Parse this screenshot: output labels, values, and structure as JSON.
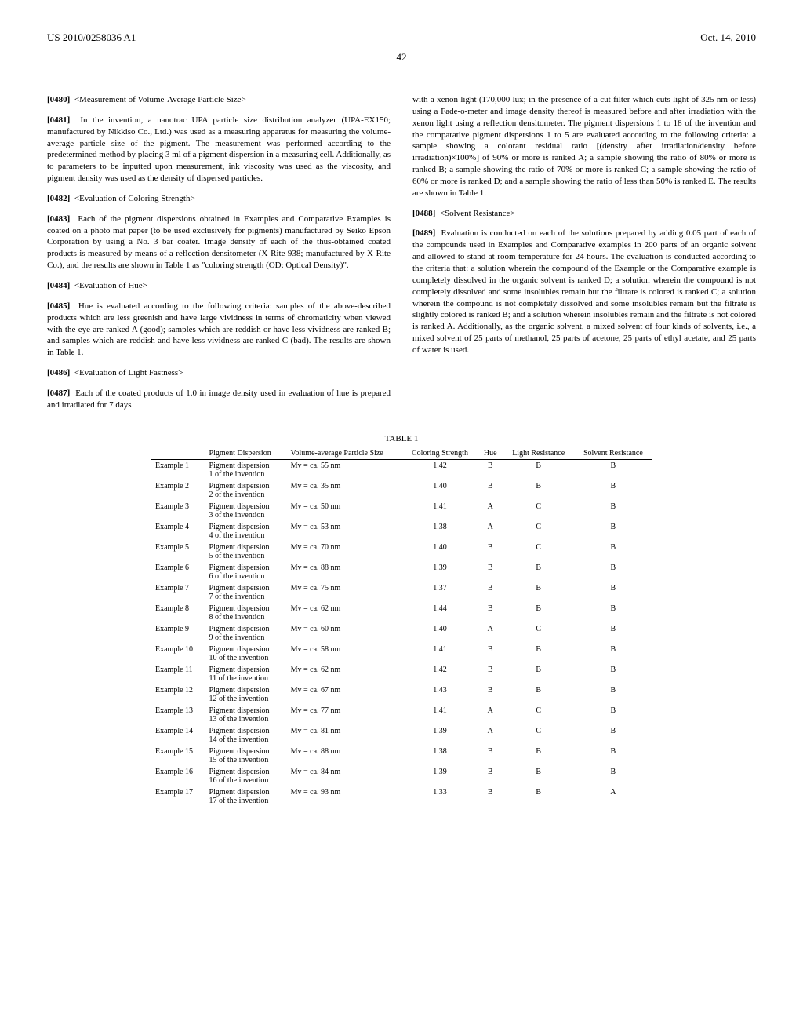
{
  "header": {
    "pubno": "US 2010/0258036 A1",
    "date": "Oct. 14, 2010",
    "pageno": "42"
  },
  "left": {
    "p0480": {
      "num": "[0480]",
      "text": "<Measurement of Volume-Average Particle Size>"
    },
    "p0481": {
      "num": "[0481]",
      "text": "In the invention, a nanotrac UPA particle size distribution analyzer (UPA-EX150; manufactured by Nikkiso Co., Ltd.) was used as a measuring apparatus for measuring the volume-average particle size of the pigment. The measurement was performed according to the predetermined method by placing 3 ml of a pigment dispersion in a measuring cell. Additionally, as to parameters to be inputted upon measurement, ink viscosity was used as the viscosity, and pigment density was used as the density of dispersed particles."
    },
    "p0482": {
      "num": "[0482]",
      "text": "<Evaluation of Coloring Strength>"
    },
    "p0483": {
      "num": "[0483]",
      "text": "Each of the pigment dispersions obtained in Examples and Comparative Examples is coated on a photo mat paper (to be used exclusively for pigments) manufactured by Seiko Epson Corporation by using a No. 3 bar coater. Image density of each of the thus-obtained coated products is measured by means of a reflection densitometer (X-Rite 938; manufactured by X-Rite Co.), and the results are shown in Table 1 as \"coloring strength (OD: Optical Density)\"."
    },
    "p0484": {
      "num": "[0484]",
      "text": "<Evaluation of Hue>"
    },
    "p0485": {
      "num": "[0485]",
      "text": "Hue is evaluated according to the following criteria: samples of the above-described products which are less greenish and have large vividness in terms of chromaticity when viewed with the eye are ranked A (good); samples which are reddish or have less vividness are ranked B; and samples which are reddish and have less vividness are ranked C (bad). The results are shown in Table 1."
    },
    "p0486": {
      "num": "[0486]",
      "text": "<Evaluation of Light Fastness>"
    },
    "p0487": {
      "num": "[0487]",
      "text": "Each of the coated products of 1.0 in image density used in evaluation of hue is prepared and irradiated for 7 days"
    }
  },
  "right": {
    "cont": "with a xenon light (170,000 lux; in the presence of a cut filter which cuts light of 325 nm or less) using a Fade-o-meter and image density thereof is measured before and after irradiation with the xenon light using a reflection densitometer. The pigment dispersions 1 to 18 of the invention and the comparative pigment dispersions 1 to 5 are evaluated according to the following criteria: a sample showing a colorant residual ratio [(density after irradiation/density before irradiation)×100%] of 90% or more is ranked A; a sample showing the ratio of 80% or more is ranked B; a sample showing the ratio of 70% or more is ranked C; a sample showing the ratio of 60% or more is ranked D; and a sample showing the ratio of less than 50% is ranked E. The results are shown in Table 1.",
    "p0488": {
      "num": "[0488]",
      "text": "<Solvent Resistance>"
    },
    "p0489": {
      "num": "[0489]",
      "text": "Evaluation is conducted on each of the solutions prepared by adding 0.05 part of each of the compounds used in Examples and Comparative examples in 200 parts of an organic solvent and allowed to stand at room temperature for 24 hours. The evaluation is conducted according to the criteria that: a solution wherein the compound of the Example or the Comparative example is completely dissolved in the organic solvent is ranked D; a solution wherein the compound is not completely dissolved and some insolubles remain but the filtrate is colored is ranked C; a solution wherein the compound is not completely dissolved and some insolubles remain but the filtrate is slightly colored is ranked B; and a solution wherein insolubles remain and the filtrate is not colored is ranked A. Additionally, as the organic solvent, a mixed solvent of four kinds of solvents, i.e., a mixed solvent of 25 parts of methanol, 25 parts of acetone, 25 parts of ethyl acetate, and 25 parts of water is used."
    }
  },
  "table": {
    "caption": "TABLE 1",
    "columns": [
      "",
      "Pigment Dispersion",
      "Volume-average Particle Size",
      "Coloring Strength",
      "Hue",
      "Light Resistance",
      "Solvent Resistance"
    ],
    "rows": [
      [
        "Example 1",
        "Pigment dispersion 1 of the invention",
        "Mv = ca. 55 nm",
        "1.42",
        "B",
        "B",
        "B"
      ],
      [
        "Example 2",
        "Pigment dispersion 2 of the invention",
        "Mv = ca. 35 nm",
        "1.40",
        "B",
        "B",
        "B"
      ],
      [
        "Example 3",
        "Pigment dispersion 3 of the invention",
        "Mv = ca. 50 nm",
        "1.41",
        "A",
        "C",
        "B"
      ],
      [
        "Example 4",
        "Pigment dispersion 4 of the invention",
        "Mv = ca. 53 nm",
        "1.38",
        "A",
        "C",
        "B"
      ],
      [
        "Example 5",
        "Pigment dispersion 5 of the invention",
        "Mv = ca. 70 nm",
        "1.40",
        "B",
        "C",
        "B"
      ],
      [
        "Example 6",
        "Pigment dispersion 6 of the invention",
        "Mv = ca. 88 nm",
        "1.39",
        "B",
        "B",
        "B"
      ],
      [
        "Example 7",
        "Pigment dispersion 7 of the invention",
        "Mv = ca. 75 nm",
        "1.37",
        "B",
        "B",
        "B"
      ],
      [
        "Example 8",
        "Pigment dispersion 8 of the invention",
        "Mv = ca. 62 nm",
        "1.44",
        "B",
        "B",
        "B"
      ],
      [
        "Example 9",
        "Pigment dispersion 9 of the invention",
        "Mv = ca. 60 nm",
        "1.40",
        "A",
        "C",
        "B"
      ],
      [
        "Example 10",
        "Pigment dispersion 10 of the invention",
        "Mv = ca. 58 nm",
        "1.41",
        "B",
        "B",
        "B"
      ],
      [
        "Example 11",
        "Pigment dispersion 11 of the invention",
        "Mv = ca. 62 nm",
        "1.42",
        "B",
        "B",
        "B"
      ],
      [
        "Example 12",
        "Pigment dispersion 12 of the invention",
        "Mv = ca. 67 nm",
        "1.43",
        "B",
        "B",
        "B"
      ],
      [
        "Example 13",
        "Pigment dispersion 13 of the invention",
        "Mv = ca. 77 nm",
        "1.41",
        "A",
        "C",
        "B"
      ],
      [
        "Example 14",
        "Pigment dispersion 14 of the invention",
        "Mv = ca. 81 nm",
        "1.39",
        "A",
        "C",
        "B"
      ],
      [
        "Example 15",
        "Pigment dispersion 15 of the invention",
        "Mv = ca. 88 nm",
        "1.38",
        "B",
        "B",
        "B"
      ],
      [
        "Example 16",
        "Pigment dispersion 16 of the invention",
        "Mv = ca. 84 nm",
        "1.39",
        "B",
        "B",
        "B"
      ],
      [
        "Example 17",
        "Pigment dispersion 17 of the invention",
        "Mv = ca. 93 nm",
        "1.33",
        "B",
        "B",
        "A"
      ]
    ]
  }
}
